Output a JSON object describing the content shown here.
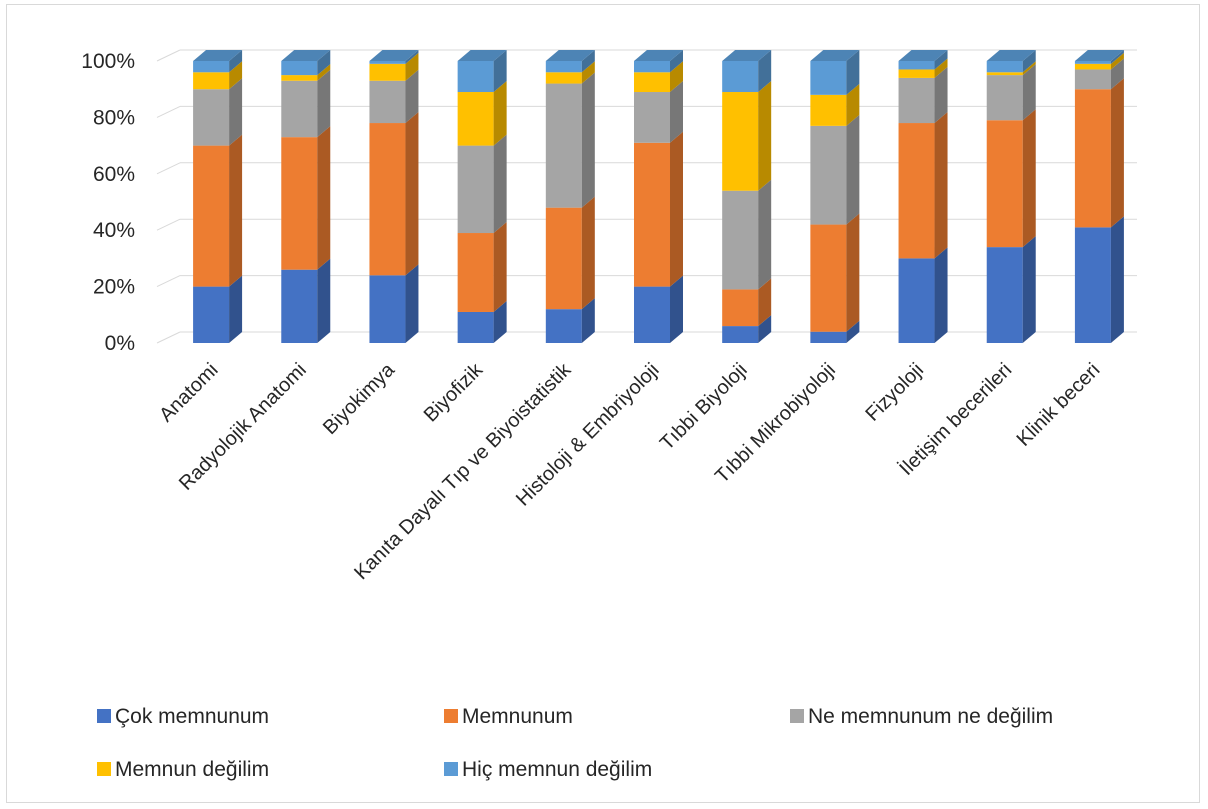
{
  "chart_data": {
    "type": "bar",
    "stacked": "percent",
    "three_d": true,
    "title": "",
    "xlabel": "",
    "ylabel": "",
    "ylim": [
      0,
      100
    ],
    "y_ticks": [
      "0%",
      "20%",
      "40%",
      "60%",
      "80%",
      "100%"
    ],
    "grid": true,
    "legend_position": "bottom",
    "categories": [
      "Anatomi",
      "Radyolojik Anatomi",
      "Biyokimya",
      "Biyofizik",
      "Kanıta Dayalı Tıp ve Biyoistatistik",
      "Histoloji & Embriyoloji",
      "Tıbbi Biyoloji",
      "Tıbbi Mikrobiyoloji",
      "Fizyoloji",
      "İletişim becerileri",
      "Klinik beceri"
    ],
    "series": [
      {
        "name": "Çok memnunum",
        "color": "#4472c4",
        "values": [
          20,
          26,
          24,
          11,
          12,
          20,
          6,
          4,
          30,
          34,
          41
        ]
      },
      {
        "name": "Memnunum",
        "color": "#ed7d31",
        "values": [
          50,
          47,
          54,
          28,
          36,
          51,
          13,
          38,
          48,
          45,
          49
        ]
      },
      {
        "name": "Ne memnunum ne değilim",
        "color": "#a5a5a5",
        "values": [
          20,
          20,
          15,
          31,
          44,
          18,
          35,
          35,
          16,
          16,
          7
        ]
      },
      {
        "name": "Memnun değilim",
        "color": "#ffc000",
        "values": [
          6,
          2,
          6,
          19,
          4,
          7,
          35,
          11,
          3,
          1,
          2
        ]
      },
      {
        "name": "Hiç memnun değilim",
        "color": "#5b9bd5",
        "values": [
          4,
          5,
          1,
          11,
          4,
          4,
          11,
          12,
          3,
          4,
          1
        ]
      }
    ]
  }
}
